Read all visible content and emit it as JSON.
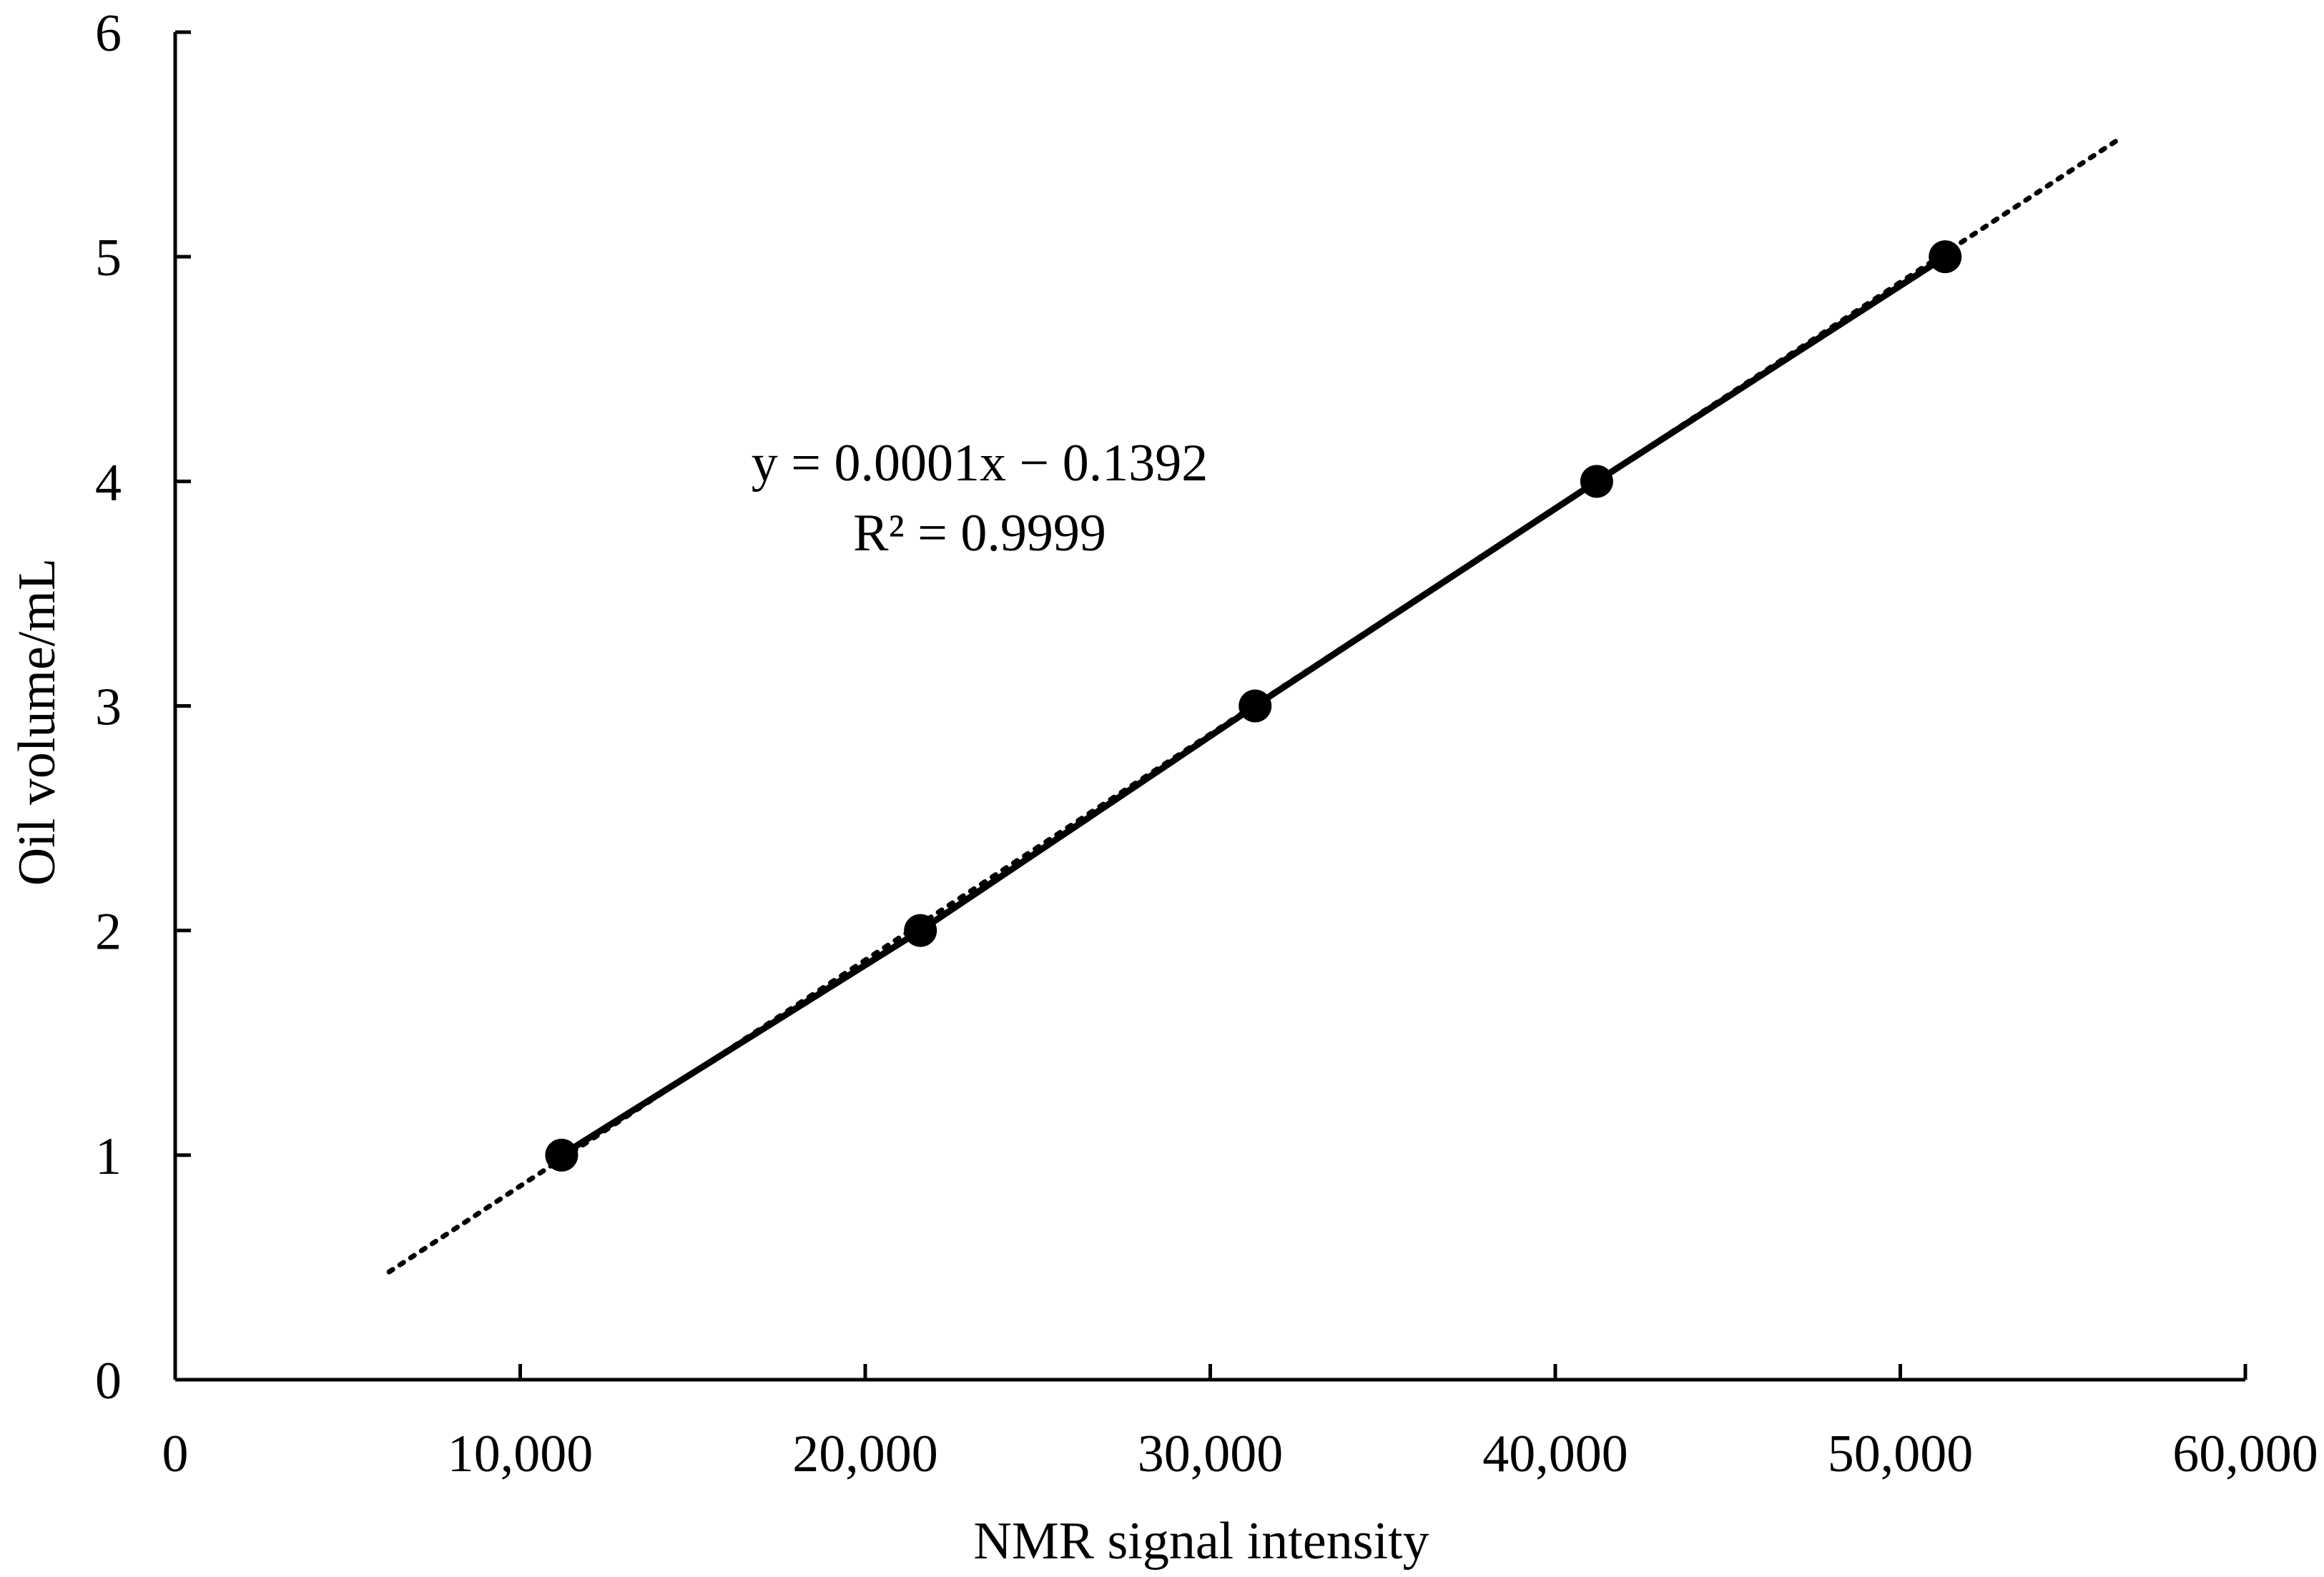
{
  "chart_data": {
    "type": "scatter",
    "xlabel": "NMR signal intensity",
    "ylabel": "Oil volume/mL",
    "xlim": [
      0,
      60000
    ],
    "ylim": [
      0,
      6
    ],
    "x_ticks": [
      0,
      10000,
      20000,
      30000,
      40000,
      50000,
      60000
    ],
    "x_tick_labels": [
      "0",
      "10,000",
      "20,000",
      "30,000",
      "40,000",
      "50,000",
      "60,000"
    ],
    "y_ticks": [
      0,
      1,
      2,
      3,
      4,
      5,
      6
    ],
    "y_tick_labels": [
      "0",
      "1",
      "2",
      "3",
      "4",
      "5",
      "6"
    ],
    "grid": false,
    "series": [
      {
        "x": [
          11200,
          21600,
          31300,
          41200,
          51300
        ],
        "y": [
          1,
          2,
          3,
          4,
          5
        ],
        "color": "#000000",
        "marker": "circle",
        "connected": true,
        "line_style": "solid"
      }
    ],
    "trendline": {
      "type": "linear",
      "line_style": "dotted",
      "color": "#000000",
      "x_range": [
        6200,
        56300
      ],
      "y_range": [
        0.48,
        5.52
      ]
    },
    "annotations": [
      "y = 0.0001x − 0.1392",
      "R² = 0.9999"
    ]
  }
}
